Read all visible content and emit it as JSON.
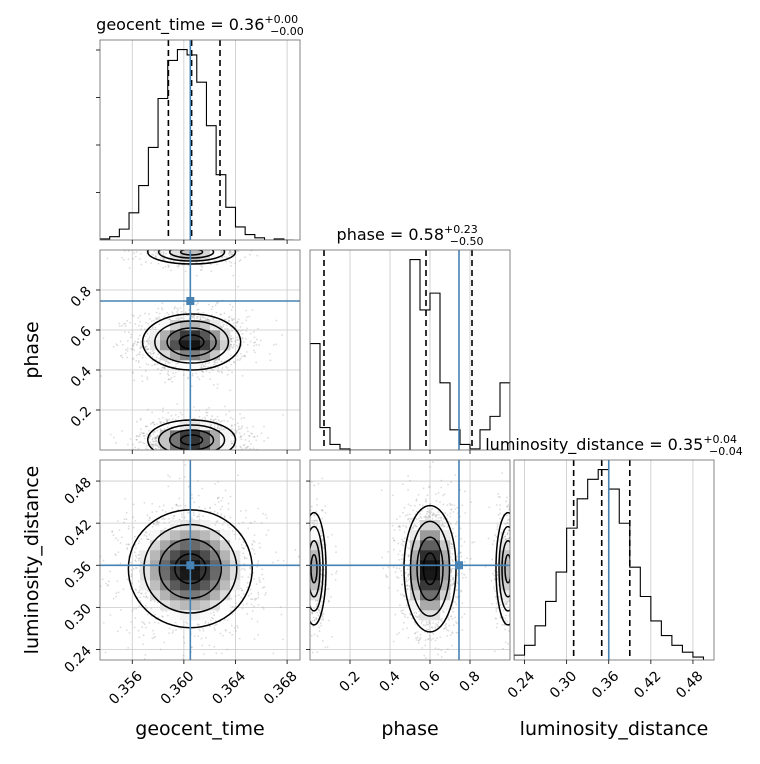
{
  "chart_data": {
    "type": "corner",
    "parameters": [
      "geocent_time",
      "phase",
      "luminosity_distance"
    ],
    "truth": {
      "geocent_time": 0.3605,
      "phase": 0.745,
      "luminosity_distance": 0.36
    },
    "truth_color": "#4682b4",
    "titles": [
      {
        "name": "geocent_time",
        "median": "0.36",
        "plus": "+0.00",
        "minus": "−0.00"
      },
      {
        "name": "phase",
        "median": "0.58",
        "plus": "+0.23",
        "minus": "−0.50"
      },
      {
        "name": "luminosity_distance",
        "median": "0.35",
        "plus": "+0.04",
        "minus": "−0.04"
      }
    ],
    "axes": {
      "geocent_time": {
        "range": [
          0.3535,
          0.369
        ],
        "ticks": [
          "0.356",
          "0.360",
          "0.364",
          "0.368"
        ],
        "tick_values": [
          0.356,
          0.36,
          0.364,
          0.368
        ]
      },
      "phase": {
        "range": [
          0.0,
          1.0
        ],
        "ticks": [
          "0.2",
          "0.4",
          "0.6",
          "0.8"
        ],
        "tick_values": [
          0.2,
          0.4,
          0.6,
          0.8
        ]
      },
      "luminosity_distance": {
        "range": [
          0.225,
          0.51
        ],
        "ticks": [
          "0.24",
          "0.30",
          "0.36",
          "0.42",
          "0.48"
        ],
        "tick_values": [
          0.24,
          0.3,
          0.36,
          0.42,
          0.48
        ]
      }
    },
    "quantiles": {
      "geocent_time": [
        0.3588,
        0.3606,
        0.3628
      ],
      "phase": [
        0.07,
        0.58,
        0.81
      ],
      "luminosity_distance": [
        0.31,
        0.35,
        0.39
      ]
    },
    "histograms": {
      "geocent_time": {
        "edges": [
          0.3535,
          0.35425,
          0.355,
          0.35575,
          0.3565,
          0.35725,
          0.358,
          0.35875,
          0.3595,
          0.36025,
          0.361,
          0.36175,
          0.3625,
          0.36325,
          0.364,
          0.36475,
          0.3655,
          0.36625,
          0.367,
          0.36775,
          0.3685
        ],
        "counts": [
          1,
          3,
          10,
          25,
          50,
          85,
          130,
          165,
          175,
          170,
          145,
          105,
          60,
          30,
          12,
          5,
          2,
          0,
          1,
          0
        ]
      },
      "phase": {
        "edges": [
          0.0,
          0.05,
          0.1,
          0.15,
          0.2,
          0.25,
          0.3,
          0.35,
          0.4,
          0.45,
          0.5,
          0.55,
          0.6,
          0.65,
          0.7,
          0.75,
          0.8,
          0.85,
          0.9,
          0.95,
          1.0
        ],
        "counts": [
          95,
          20,
          5,
          1,
          0,
          0,
          0,
          0,
          0,
          0,
          170,
          125,
          140,
          60,
          18,
          5,
          1,
          18,
          30,
          60
        ]
      },
      "luminosity_distance": {
        "edges": [
          0.225,
          0.24,
          0.255,
          0.27,
          0.285,
          0.3,
          0.315,
          0.33,
          0.345,
          0.36,
          0.375,
          0.39,
          0.405,
          0.42,
          0.435,
          0.45,
          0.465,
          0.48,
          0.495
        ],
        "counts": [
          5,
          15,
          35,
          60,
          90,
          135,
          165,
          185,
          195,
          175,
          140,
          95,
          65,
          40,
          25,
          15,
          8,
          3
        ]
      }
    },
    "contours_2d": [
      {
        "x": "geocent_time",
        "y": "phase",
        "blobs": [
          {
            "cx": 0.3606,
            "cy": 0.54,
            "sx": 0.0019,
            "sy": 0.07,
            "skew": -0.6
          },
          {
            "cx": 0.3606,
            "cy": 0.05,
            "sx": 0.0017,
            "sy": 0.05,
            "skew": 0
          },
          {
            "cx": 0.3606,
            "cy": 0.99,
            "sx": 0.0017,
            "sy": 0.03,
            "skew": 0
          }
        ]
      },
      {
        "x": "geocent_time",
        "y": "luminosity_distance",
        "blobs": [
          {
            "cx": 0.3605,
            "cy": 0.355,
            "sx": 0.0024,
            "sy": 0.042,
            "skew": 0
          }
        ]
      },
      {
        "x": "phase",
        "y": "luminosity_distance",
        "blobs": [
          {
            "cx": 0.6,
            "cy": 0.355,
            "sx": 0.065,
            "sy": 0.045,
            "skew": 0
          },
          {
            "cx": 0.02,
            "cy": 0.355,
            "sx": 0.03,
            "sy": 0.04,
            "skew": 0
          },
          {
            "cx": 0.99,
            "cy": 0.355,
            "sx": 0.03,
            "sy": 0.04,
            "skew": 0
          }
        ]
      }
    ]
  }
}
